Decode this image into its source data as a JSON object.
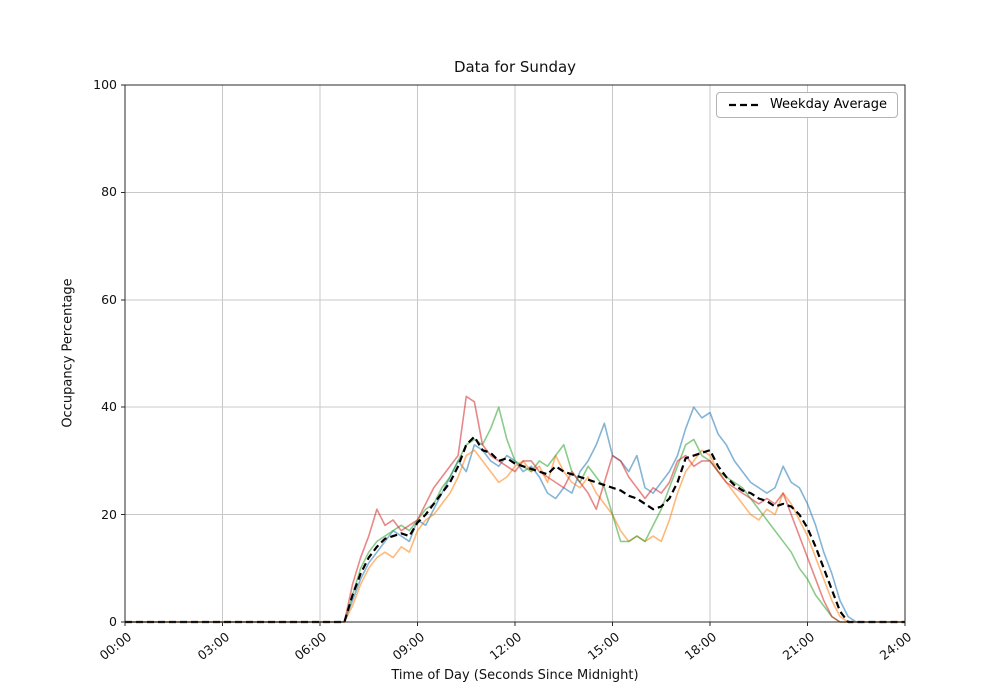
{
  "chart_data": {
    "type": "line",
    "title": "Data for Sunday",
    "xlabel": "Time of Day (Seconds Since Midnight)",
    "ylabel": "Occupancy Percentage",
    "xlim": [
      0,
      24
    ],
    "ylim": [
      0,
      100
    ],
    "grid": true,
    "legend_label": "Weekday Average",
    "legend_position": "upper right",
    "x_ticks": [
      0,
      3,
      6,
      9,
      12,
      15,
      18,
      21,
      24
    ],
    "x_tick_labels": [
      "00:00",
      "03:00",
      "06:00",
      "09:00",
      "12:00",
      "15:00",
      "18:00",
      "21:00",
      "24:00"
    ],
    "y_ticks": [
      0,
      20,
      40,
      60,
      80,
      100
    ],
    "style": {
      "grid_color": "#c8c8c8",
      "spine_color": "#2a2a2a",
      "background": "#ffffff"
    },
    "x_unit": "hours",
    "x_start": 0,
    "x_step": 0.25,
    "series": [
      {
        "name": "series-1",
        "color": "#1f77b4",
        "opacity": 0.55,
        "width": 1.6,
        "dash": null,
        "values": [
          0,
          0,
          0,
          0,
          0,
          0,
          0,
          0,
          0,
          0,
          0,
          0,
          0,
          0,
          0,
          0,
          0,
          0,
          0,
          0,
          0,
          0,
          0,
          0,
          0,
          0,
          0,
          0,
          4,
          8,
          11,
          13,
          15,
          17,
          16,
          15,
          19,
          18,
          21,
          24,
          27,
          30,
          28,
          33,
          32,
          30,
          29,
          31,
          30,
          28,
          29,
          27,
          24,
          23,
          25,
          24,
          28,
          30,
          33,
          37,
          31,
          30,
          28,
          31,
          25,
          24,
          26,
          28,
          31,
          36,
          40,
          38,
          39,
          35,
          33,
          30,
          28,
          26,
          25,
          24,
          25,
          29,
          26,
          25,
          22,
          18,
          13,
          9,
          4,
          1,
          0,
          0,
          0,
          0,
          0,
          0,
          0
        ]
      },
      {
        "name": "series-2",
        "color": "#ff7f0e",
        "opacity": 0.55,
        "width": 1.6,
        "dash": null,
        "values": [
          0,
          0,
          0,
          0,
          0,
          0,
          0,
          0,
          0,
          0,
          0,
          0,
          0,
          0,
          0,
          0,
          0,
          0,
          0,
          0,
          0,
          0,
          0,
          0,
          0,
          0,
          0,
          0,
          3,
          7,
          10,
          12,
          13,
          12,
          14,
          13,
          17,
          19,
          20,
          22,
          24,
          27,
          31,
          32,
          30,
          28,
          26,
          27,
          29,
          30,
          28,
          29,
          26,
          31,
          28,
          26,
          25,
          27,
          24,
          22,
          20,
          17,
          15,
          16,
          15,
          16,
          15,
          19,
          24,
          28,
          30,
          32,
          31,
          28,
          26,
          24,
          22,
          20,
          19,
          21,
          20,
          24,
          22,
          19,
          16,
          12,
          8,
          4,
          1,
          0,
          0,
          0,
          0,
          0,
          0,
          0,
          0
        ]
      },
      {
        "name": "series-3",
        "color": "#2ca02c",
        "opacity": 0.55,
        "width": 1.6,
        "dash": null,
        "values": [
          0,
          0,
          0,
          0,
          0,
          0,
          0,
          0,
          0,
          0,
          0,
          0,
          0,
          0,
          0,
          0,
          0,
          0,
          0,
          0,
          0,
          0,
          0,
          0,
          0,
          0,
          0,
          0,
          5,
          10,
          13,
          15,
          16,
          17,
          18,
          17,
          19,
          21,
          22,
          25,
          27,
          30,
          33,
          34,
          33,
          36,
          40,
          34,
          30,
          29,
          28,
          30,
          29,
          31,
          33,
          28,
          26,
          29,
          27,
          25,
          20,
          15,
          15,
          16,
          15,
          18,
          21,
          25,
          29,
          33,
          34,
          31,
          30,
          28,
          27,
          26,
          25,
          23,
          21,
          19,
          17,
          15,
          13,
          10,
          8,
          5,
          3,
          1,
          0,
          0,
          0,
          0,
          0,
          0,
          0,
          0,
          0
        ]
      },
      {
        "name": "series-4",
        "color": "#d62728",
        "opacity": 0.55,
        "width": 1.6,
        "dash": null,
        "values": [
          0,
          0,
          0,
          0,
          0,
          0,
          0,
          0,
          0,
          0,
          0,
          0,
          0,
          0,
          0,
          0,
          0,
          0,
          0,
          0,
          0,
          0,
          0,
          0,
          0,
          0,
          0,
          0,
          7,
          12,
          16,
          21,
          18,
          19,
          17,
          18,
          19,
          22,
          25,
          27,
          29,
          31,
          42,
          41,
          33,
          31,
          30,
          29,
          28,
          30,
          30,
          28,
          27,
          26,
          25,
          28,
          26,
          24,
          21,
          26,
          31,
          30,
          27,
          25,
          23,
          25,
          24,
          26,
          30,
          31,
          29,
          30,
          30,
          28,
          26,
          25,
          24,
          23,
          22,
          23,
          22,
          24,
          20,
          16,
          12,
          8,
          4,
          1,
          0,
          0,
          0,
          0,
          0,
          0,
          0,
          0,
          0
        ]
      },
      {
        "name": "Weekday Average",
        "color": "#000000",
        "opacity": 1,
        "width": 2.2,
        "dash": "7 4",
        "values": [
          0,
          0,
          0,
          0,
          0,
          0,
          0,
          0,
          0,
          0,
          0,
          0,
          0,
          0,
          0,
          0,
          0,
          0,
          0,
          0,
          0,
          0,
          0,
          0,
          0,
          0,
          0,
          0,
          5,
          9,
          12,
          14,
          15.5,
          16,
          16.5,
          16,
          18.5,
          20,
          22,
          24,
          26,
          29,
          33,
          34.5,
          32,
          31.5,
          30,
          30.5,
          29.5,
          29,
          28.5,
          28,
          27.5,
          29,
          28,
          27.5,
          27,
          26.5,
          26,
          25.5,
          25,
          24.5,
          23.5,
          23,
          22,
          21,
          21.5,
          23,
          26,
          30.5,
          31,
          31.5,
          32,
          29,
          27,
          25.5,
          24.5,
          24,
          23,
          22.5,
          21.5,
          22,
          21.5,
          20,
          17.5,
          14,
          10,
          6,
          2,
          0,
          0,
          0,
          0,
          0,
          0,
          0,
          0
        ]
      }
    ]
  }
}
